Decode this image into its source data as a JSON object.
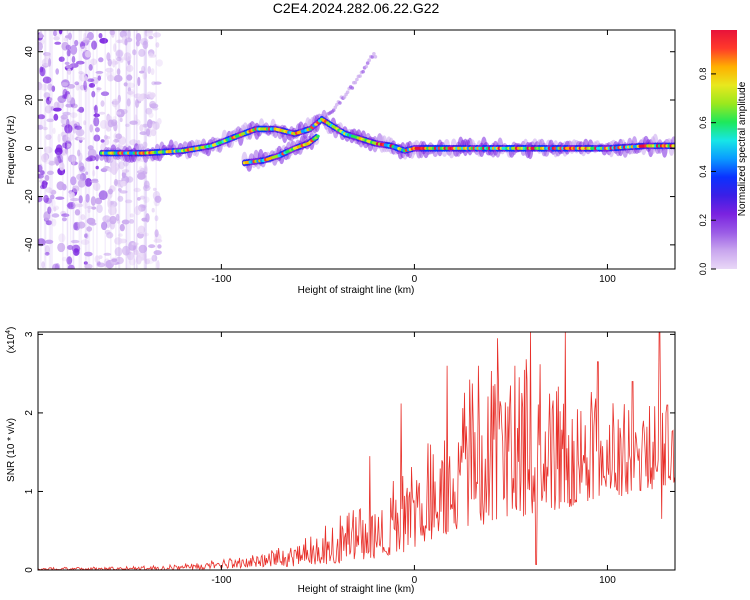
{
  "figure_title": "C2E4.2024.282.06.22.G22",
  "colors": {
    "snr_line": "#e8302a",
    "frame": "#000000",
    "spectrum_scale": [
      "#e9d8f7",
      "#c9a6ee",
      "#9a5be6",
      "#7a22e0",
      "#3b1fe6",
      "#0a32ff",
      "#0a9cff",
      "#17e6e6",
      "#1ee85a",
      "#9be81e",
      "#e8e81e",
      "#ffb000",
      "#ff3a2a",
      "#e8123a"
    ]
  },
  "chart_data": [
    {
      "type": "heatmap",
      "title": "C2E4.2024.282.06.22.G22",
      "xlabel": "Height of straight line (km)",
      "ylabel": "Frequency (Hz)",
      "xlim": [
        -195,
        135
      ],
      "ylim": [
        -50,
        49
      ],
      "xticks": [
        -100,
        0,
        100
      ],
      "yticks": [
        -40,
        -20,
        0,
        20,
        40
      ],
      "colorbar": {
        "label": "Normalized spectral amplitude",
        "range": [
          0,
          0.98
        ],
        "ticks": [
          0.0,
          0.2,
          0.4,
          0.6,
          0.8
        ]
      },
      "ridge": {
        "main_track": [
          [
            -162,
            -2
          ],
          [
            -140,
            -2
          ],
          [
            -120,
            -1
          ],
          [
            -105,
            1
          ],
          [
            -92,
            5
          ],
          [
            -82,
            8
          ],
          [
            -72,
            8
          ],
          [
            -62,
            6
          ],
          [
            -54,
            8
          ],
          [
            -48,
            12
          ],
          [
            -42,
            9
          ],
          [
            -36,
            6
          ],
          [
            -28,
            4
          ],
          [
            -20,
            2
          ],
          [
            -12,
            1
          ],
          [
            -5,
            -1
          ],
          [
            0,
            0
          ],
          [
            20,
            0
          ],
          [
            40,
            0
          ],
          [
            60,
            0
          ],
          [
            80,
            0
          ],
          [
            100,
            0
          ],
          [
            120,
            1
          ],
          [
            135,
            1
          ]
        ],
        "lower_branch": [
          [
            -88,
            -6
          ],
          [
            -78,
            -5
          ],
          [
            -70,
            -3
          ],
          [
            -62,
            0
          ],
          [
            -55,
            2
          ],
          [
            -50,
            5
          ]
        ],
        "faint_branch": [
          [
            -45,
            14
          ],
          [
            -38,
            20
          ],
          [
            -30,
            28
          ],
          [
            -24,
            36
          ],
          [
            -20,
            39
          ]
        ],
        "noise_region_x": [
          -195,
          -132
        ]
      }
    },
    {
      "type": "line",
      "title": "",
      "xlabel": "Height of straight line (km)",
      "ylabel": "SNR (10 * v/v)",
      "scale_label": "(x10",
      "scale_exponent": "4",
      "scale_close": ")",
      "xlim": [
        -195,
        135
      ],
      "ylim": [
        0,
        3.03
      ],
      "xticks": [
        -100,
        0,
        100
      ],
      "yticks": [
        0,
        1,
        2,
        3
      ],
      "envelope": [
        [
          -195,
          0.03
        ],
        [
          -160,
          0.04
        ],
        [
          -130,
          0.06
        ],
        [
          -100,
          0.14
        ],
        [
          -80,
          0.22
        ],
        [
          -60,
          0.35
        ],
        [
          -45,
          0.6
        ],
        [
          -30,
          1.0
        ],
        [
          -20,
          0.9
        ],
        [
          -10,
          1.2
        ],
        [
          0,
          1.4
        ],
        [
          10,
          1.7
        ],
        [
          20,
          2.2
        ],
        [
          30,
          2.5
        ],
        [
          45,
          2.6
        ],
        [
          60,
          2.7
        ],
        [
          75,
          2.4
        ],
        [
          90,
          2.3
        ],
        [
          105,
          2.1
        ],
        [
          120,
          2.2
        ],
        [
          135,
          2.0
        ]
      ],
      "baseline_min": [
        [
          -195,
          0.0
        ],
        [
          -120,
          0.0
        ],
        [
          -60,
          0.05
        ],
        [
          -30,
          0.1
        ],
        [
          0,
          0.25
        ],
        [
          20,
          0.5
        ],
        [
          40,
          0.6
        ],
        [
          60,
          0.7
        ],
        [
          80,
          0.8
        ],
        [
          100,
          0.9
        ],
        [
          120,
          1.0
        ],
        [
          135,
          1.1
        ]
      ],
      "peaks": [
        [
          -23,
          1.45
        ],
        [
          -7,
          2.12
        ],
        [
          17,
          2.6
        ],
        [
          33,
          2.6
        ],
        [
          43,
          2.95
        ],
        [
          52,
          2.6
        ],
        [
          60,
          3.03
        ],
        [
          65,
          2.62
        ],
        [
          78,
          3.03
        ],
        [
          95,
          2.65
        ],
        [
          113,
          2.4
        ],
        [
          127,
          3.03
        ],
        [
          131,
          2.1
        ]
      ],
      "dips": [
        [
          63,
          0.07
        ],
        [
          128,
          0.65
        ]
      ]
    }
  ]
}
